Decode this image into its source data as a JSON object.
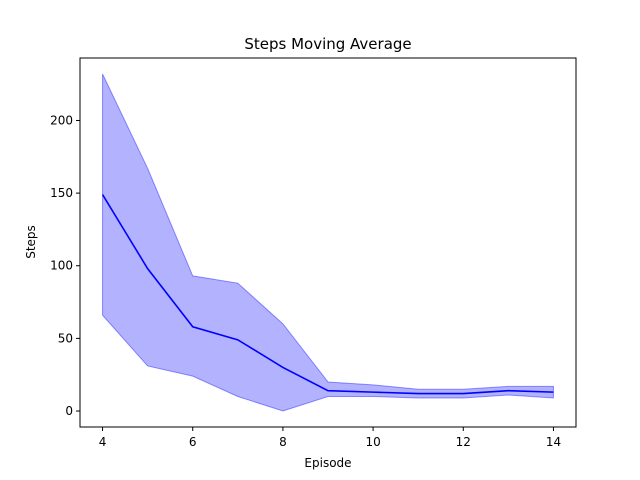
{
  "chart_data": {
    "type": "line",
    "title": "Steps Moving Average",
    "xlabel": "Episode",
    "ylabel": "Steps",
    "xlim": [
      3.5,
      14.5
    ],
    "ylim": [
      -11,
      243
    ],
    "x_ticks": [
      4,
      6,
      8,
      10,
      12,
      14
    ],
    "y_ticks": [
      0,
      50,
      100,
      150,
      200
    ],
    "grid": false,
    "legend": "none",
    "series": [
      {
        "x": [
          4,
          5,
          6,
          7,
          8,
          9,
          10,
          11,
          12,
          13,
          14
        ],
        "values": [
          149,
          98,
          58,
          49,
          30,
          14,
          13,
          12,
          12,
          14,
          13
        ],
        "band_upper": [
          232,
          167,
          93,
          88,
          60,
          20,
          18,
          15,
          15,
          17,
          17
        ],
        "band_lower": [
          66,
          31,
          24,
          10,
          0,
          10,
          10,
          9,
          9,
          11,
          9
        ],
        "line_color": "#0000ff",
        "band_color": "#0000ff"
      }
    ]
  }
}
